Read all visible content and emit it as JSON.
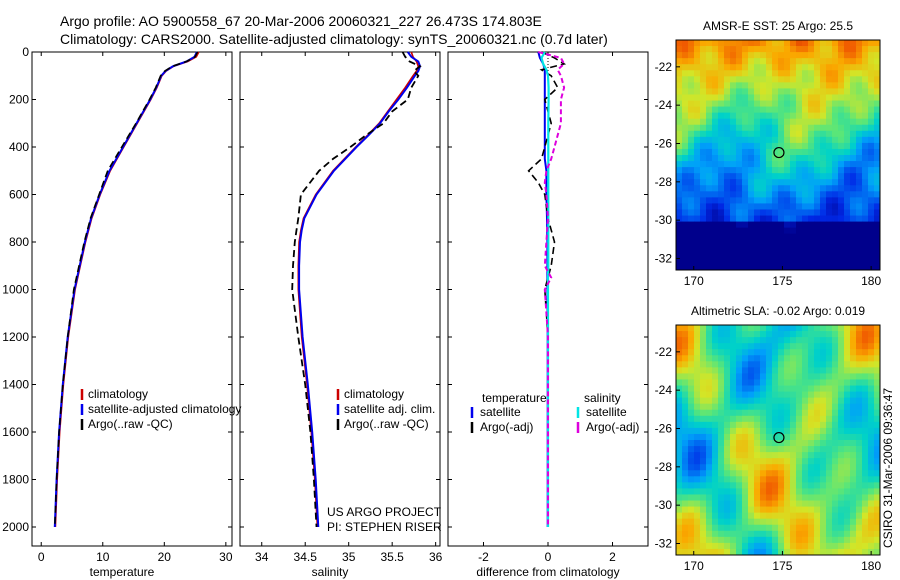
{
  "figure": {
    "title_line1": "Argo profile: AO 5900558_67 20-Mar-2006 20060321_227 26.473S 174.803E",
    "title_line2": "Climatology: CARS2000. Satellite-adjusted climatology: synTS_20060321.nc (0.7d later)",
    "credit_line1": "US ARGO PROJECT",
    "credit_line2": "PI: STEPHEN RISER",
    "timestamp": "CSIRO 31-Mar-2006 09:36:47"
  },
  "colors": {
    "climatology": "#cc0000",
    "satellite": "#0000ee",
    "argo": "#000000",
    "salinity_satellite": "#00e5e5",
    "salinity_argo": "#dd00dd"
  },
  "chart_data": [
    {
      "type": "line",
      "xlabel": "temperature",
      "ylabel": "",
      "xlim": [
        -1.5,
        31
      ],
      "ylim": [
        2080,
        0
      ],
      "xticks": [
        "0",
        "10",
        "20",
        "30"
      ],
      "yticks": [
        "0",
        "200",
        "400",
        "600",
        "800",
        "1000",
        "1200",
        "1400",
        "1600",
        "1800",
        "2000"
      ],
      "legend": [
        "climatology",
        "satellite-adjusted climatology",
        "Argo(..raw -QC)"
      ],
      "legend_position": "lower-middle",
      "depth": [
        0,
        20,
        40,
        60,
        80,
        100,
        150,
        200,
        300,
        400,
        500,
        600,
        700,
        800,
        1000,
        1200,
        1400,
        1600,
        1800,
        2000
      ],
      "series": [
        {
          "name": "climatology",
          "values": [
            25.6,
            25.2,
            23.8,
            21.5,
            20.3,
            19.6,
            18.8,
            17.8,
            15.6,
            13.4,
            11.2,
            9.6,
            8.2,
            7.2,
            5.5,
            4.4,
            3.6,
            3.0,
            2.6,
            2.3
          ]
        },
        {
          "name": "satellite-adjusted climatology",
          "values": [
            25.3,
            24.9,
            23.6,
            21.4,
            20.2,
            19.5,
            18.7,
            17.7,
            15.5,
            13.3,
            11.1,
            9.5,
            8.1,
            7.1,
            5.4,
            4.3,
            3.5,
            2.9,
            2.5,
            2.2
          ]
        },
        {
          "name": "Argo(..raw -QC)",
          "values": [
            25.4,
            25.0,
            23.6,
            21.3,
            20.1,
            19.4,
            18.6,
            17.6,
            15.4,
            13.1,
            10.8,
            9.4,
            8.0,
            7.0,
            5.3,
            4.3,
            3.5,
            2.9,
            2.5,
            2.2
          ]
        }
      ]
    },
    {
      "type": "line",
      "xlabel": "salinity",
      "ylabel": "",
      "xlim": [
        33.75,
        36.05
      ],
      "ylim": [
        2080,
        0
      ],
      "xticks": [
        "34",
        "34.5",
        "35",
        "35.5",
        "36"
      ],
      "legend": [
        "climatology",
        "satellite adj. clim.",
        "Argo(..raw -QC)"
      ],
      "legend_position": "lower-right",
      "depth": [
        0,
        20,
        40,
        60,
        80,
        100,
        150,
        200,
        250,
        300,
        350,
        400,
        450,
        500,
        600,
        700,
        750,
        800,
        900,
        1000,
        1200,
        1400,
        1600,
        1800,
        2000
      ],
      "series": [
        {
          "name": "climatology",
          "values": [
            35.72,
            35.74,
            35.78,
            35.8,
            35.78,
            35.74,
            35.65,
            35.55,
            35.45,
            35.35,
            35.22,
            35.08,
            34.95,
            34.82,
            34.62,
            34.48,
            34.45,
            34.43,
            34.42,
            34.42,
            34.46,
            34.52,
            34.57,
            34.61,
            34.64
          ]
        },
        {
          "name": "satellite adj. clim.",
          "values": [
            35.68,
            35.72,
            35.8,
            35.82,
            35.8,
            35.76,
            35.67,
            35.57,
            35.46,
            35.36,
            35.23,
            35.09,
            34.96,
            34.83,
            34.63,
            34.49,
            34.46,
            34.44,
            34.43,
            34.43,
            34.47,
            34.53,
            34.58,
            34.62,
            34.65
          ]
        },
        {
          "name": "Argo(..raw -QC)",
          "values": [
            35.62,
            35.65,
            35.7,
            35.82,
            35.75,
            35.8,
            35.72,
            35.68,
            35.5,
            35.4,
            35.2,
            35.02,
            34.82,
            34.66,
            34.45,
            34.42,
            34.4,
            34.38,
            34.36,
            34.35,
            34.42,
            34.5,
            34.56,
            34.6,
            34.63
          ]
        }
      ]
    },
    {
      "type": "line",
      "xlabel": "difference from climatology",
      "ylabel": "",
      "xlim": [
        -3.1,
        3.1
      ],
      "ylim": [
        2080,
        0
      ],
      "xticks": [
        "-2",
        "0",
        "2"
      ],
      "legend_groups": [
        {
          "title": "temperature",
          "entries": [
            "satellite",
            "Argo(-adj)"
          ]
        },
        {
          "title": "salinity",
          "entries": [
            "satellite",
            "Argo(-adj)"
          ]
        }
      ],
      "legend_position": "middle",
      "depth": [
        0,
        25,
        50,
        75,
        100,
        150,
        200,
        300,
        400,
        450,
        500,
        550,
        600,
        700,
        800,
        900,
        950,
        1000,
        1200,
        1400,
        1600,
        1800,
        2000
      ],
      "series": [
        {
          "name": "temperature satellite",
          "values": [
            -0.3,
            -0.25,
            -0.15,
            -0.1,
            -0.1,
            -0.1,
            -0.1,
            -0.1,
            -0.1,
            -0.1,
            -0.05,
            -0.05,
            -0.05,
            -0.03,
            -0.02,
            -0.02,
            -0.02,
            -0.02,
            -0.01,
            -0.01,
            -0.01,
            -0.01,
            -0.01
          ]
        },
        {
          "name": "temperature Argo(-adj)",
          "values": [
            -0.2,
            0.2,
            0.5,
            -0.2,
            0.1,
            0.3,
            -0.1,
            0.1,
            -0.1,
            -0.2,
            -0.6,
            -0.3,
            -0.1,
            0.0,
            0.2,
            0.1,
            0.0,
            -0.1,
            0.0,
            0.0,
            0.0,
            0.0,
            0.0
          ]
        },
        {
          "name": "salinity satellite",
          "values": [
            -0.1,
            -0.2,
            -0.15,
            -0.05,
            0.0,
            0.02,
            0.02,
            0.01,
            0.01,
            0.01,
            0.01,
            0.01,
            0.01,
            0.01,
            0.01,
            0.01,
            0.0,
            0.0,
            0.0,
            0.0,
            0.0,
            0.0,
            0.0
          ]
        },
        {
          "name": "salinity Argo(-adj)",
          "values": [
            -0.3,
            0.4,
            0.5,
            0.3,
            0.4,
            0.5,
            0.4,
            0.4,
            0.2,
            0.1,
            -0.05,
            -0.1,
            -0.05,
            0.0,
            -0.05,
            -0.1,
            0.1,
            -0.1,
            0.0,
            0.0,
            0.0,
            0.0,
            0.0
          ]
        }
      ]
    },
    {
      "type": "heatmap",
      "title": "AMSR-E SST: 25 Argo: 25.5",
      "xlim": [
        169,
        180.5
      ],
      "ylim": [
        -32.6,
        -20.6
      ],
      "xticks": [
        "170",
        "175",
        "180"
      ],
      "yticks": [
        "-22",
        "-24",
        "-26",
        "-28",
        "-30",
        "-32"
      ],
      "marker": {
        "lon": 174.803,
        "lat": -26.473
      }
    },
    {
      "type": "heatmap",
      "title": "Altimetric SLA: -0.02 Argo: 0.019",
      "xlim": [
        169,
        180.5
      ],
      "ylim": [
        -32.6,
        -20.6
      ],
      "xticks": [
        "170",
        "175",
        "180"
      ],
      "yticks": [
        "-22",
        "-24",
        "-26",
        "-28",
        "-30",
        "-32"
      ],
      "marker": {
        "lon": 174.803,
        "lat": -26.473
      }
    }
  ]
}
